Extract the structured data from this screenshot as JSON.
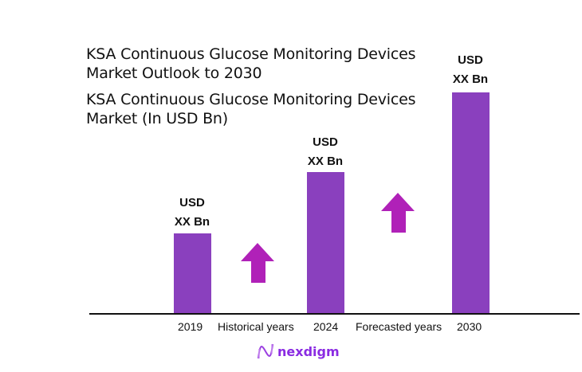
{
  "chart_data": {
    "type": "bar",
    "title": "KSA Continuous Glucose Monitoring Devices Market Outlook to 2030",
    "subtitle": "KSA Continuous Glucose Monitoring Devices Market (In USD Bn)",
    "categories": [
      "2019",
      "2024",
      "2030"
    ],
    "data_labels": [
      [
        "USD",
        "XX Bn"
      ],
      [
        "USD",
        "XX Bn"
      ],
      [
        "USD",
        "XX Bn"
      ]
    ],
    "annotations": [
      "Historical years",
      "Forecasted years"
    ],
    "grid": false,
    "colors": {
      "bar": "#8a40be",
      "arrow": "#b021b8"
    }
  },
  "title_lines": [
    "KSA Continuous Glucose Monitoring Devices",
    "Market Outlook to 2030"
  ],
  "subtitle_lines": [
    "KSA Continuous Glucose Monitoring Devices",
    "Market (In USD Bn)"
  ],
  "logo": {
    "text": "nexdigm",
    "icon": "nexdigm-logo-icon"
  }
}
